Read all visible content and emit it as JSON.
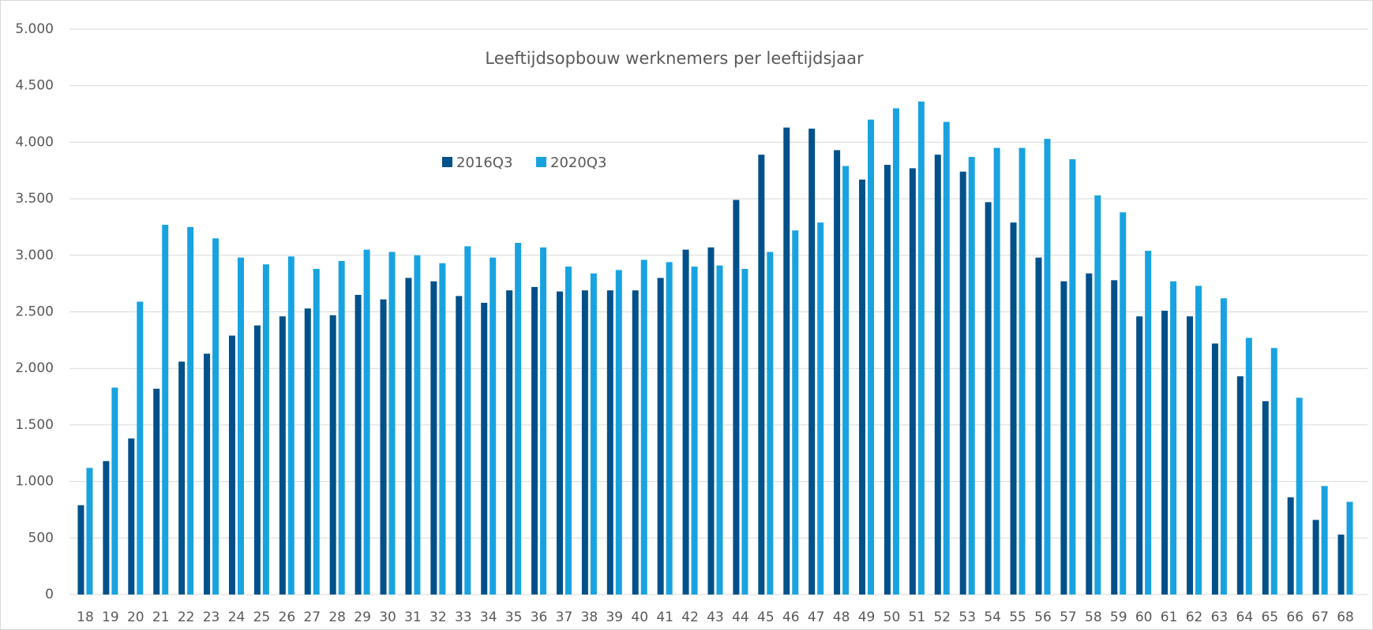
{
  "chart_data": {
    "type": "bar",
    "title": "Leeftijdsopbouw werknemers per leeftijdsjaar",
    "categories": [
      "18",
      "19",
      "20",
      "21",
      "22",
      "23",
      "24",
      "25",
      "26",
      "27",
      "28",
      "29",
      "30",
      "31",
      "32",
      "33",
      "34",
      "35",
      "36",
      "37",
      "38",
      "39",
      "40",
      "41",
      "42",
      "43",
      "44",
      "45",
      "46",
      "47",
      "48",
      "49",
      "50",
      "51",
      "52",
      "53",
      "54",
      "55",
      "56",
      "57",
      "58",
      "59",
      "60",
      "61",
      "62",
      "63",
      "64",
      "65",
      "66",
      "67",
      "68"
    ],
    "series": [
      {
        "name": "2016Q3",
        "color": "#00518a",
        "values": [
          790,
          1180,
          1380,
          1820,
          2060,
          2130,
          2290,
          2380,
          2460,
          2530,
          2470,
          2650,
          2610,
          2800,
          2770,
          2640,
          2580,
          2690,
          2720,
          2680,
          2690,
          2690,
          2690,
          2800,
          3050,
          3070,
          3490,
          3890,
          4130,
          4120,
          3930,
          3670,
          3800,
          3770,
          3890,
          3740,
          3470,
          3290,
          2980,
          2770,
          2840,
          2780,
          2460,
          2510,
          2460,
          2220,
          1930,
          1710,
          860,
          660,
          530
        ]
      },
      {
        "name": "2020Q3",
        "color": "#18a3e0",
        "values": [
          1120,
          1830,
          2590,
          3270,
          3250,
          3150,
          2980,
          2920,
          2990,
          2880,
          2950,
          3050,
          3030,
          3000,
          2930,
          3080,
          2980,
          3110,
          3070,
          2900,
          2840,
          2870,
          2960,
          2940,
          2900,
          2910,
          2880,
          3030,
          3220,
          3290,
          3790,
          4200,
          4300,
          4360,
          4180,
          3870,
          3950,
          3950,
          4030,
          3850,
          3530,
          3380,
          3040,
          2770,
          2730,
          2620,
          2270,
          2180,
          1740,
          960,
          820
        ]
      }
    ],
    "ylim": [
      0,
      5000
    ],
    "yticks": [
      0,
      500,
      {
        "value": 1000,
        "label": "1.000"
      },
      {
        "value": 1500,
        "label": "1.500"
      },
      {
        "value": 2000,
        "label": "2.000"
      },
      {
        "value": 2500,
        "label": "2.500"
      },
      {
        "value": 3000,
        "label": "3.000"
      },
      {
        "value": 3500,
        "label": "3.500"
      },
      {
        "value": 4000,
        "label": "4.000"
      },
      {
        "value": 4500,
        "label": "4.500"
      },
      {
        "value": 5000,
        "label": "5.000"
      }
    ],
    "grid": true
  }
}
